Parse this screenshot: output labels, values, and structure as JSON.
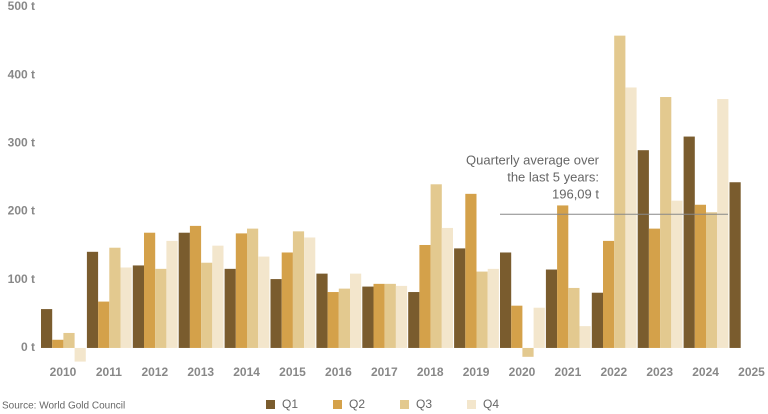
{
  "chart_data": {
    "type": "bar",
    "categories": [
      "2010",
      "2011",
      "2012",
      "2013",
      "2014",
      "2015",
      "2016",
      "2017",
      "2018",
      "2019",
      "2020",
      "2021",
      "2022",
      "2023",
      "2024",
      "2025"
    ],
    "series": [
      {
        "name": "Q1",
        "color": "#7a5c2e",
        "values": [
          57,
          141,
          121,
          169,
          116,
          101,
          109,
          90,
          82,
          146,
          140,
          115,
          81,
          290,
          310,
          243
        ]
      },
      {
        "name": "Q2",
        "color": "#d4a14a",
        "values": [
          12,
          68,
          169,
          179,
          168,
          140,
          82,
          94,
          151,
          226,
          62,
          209,
          157,
          175,
          210,
          null
        ]
      },
      {
        "name": "Q3",
        "color": "#e3c98f",
        "values": [
          22,
          147,
          116,
          125,
          175,
          171,
          87,
          94,
          240,
          112,
          -13,
          88,
          458,
          368,
          199,
          null
        ]
      },
      {
        "name": "Q4",
        "color": "#f3e6cc",
        "values": [
          -20,
          118,
          157,
          150,
          134,
          162,
          109,
          91,
          176,
          116,
          59,
          32,
          382,
          216,
          365,
          null
        ]
      }
    ],
    "ylim": [
      -25,
      500
    ],
    "yticks": [
      {
        "value": 0,
        "label": "0 t"
      },
      {
        "value": 100,
        "label": "100 t"
      },
      {
        "value": 200,
        "label": "200 t"
      },
      {
        "value": 300,
        "label": "300 t"
      },
      {
        "value": 400,
        "label": "400 t"
      },
      {
        "value": 500,
        "label": "500 t"
      }
    ],
    "grid": false,
    "legend": "bottom",
    "annotation": {
      "lines": [
        "Quarterly average over",
        "the last 5 years:",
        "196,09 t"
      ],
      "value": 196.09,
      "color": "#888888"
    },
    "source": "Source: World Gold Council"
  }
}
